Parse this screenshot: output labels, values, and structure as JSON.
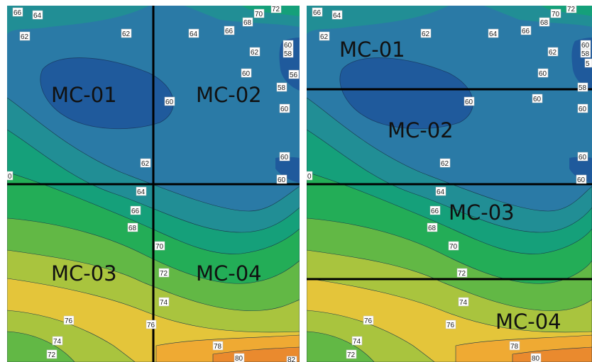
{
  "colors": {
    "deep_blue": "#1f5a9c",
    "blue": "#2a7aa6",
    "teal": "#218e95",
    "teal_green": "#15a07a",
    "green": "#23ad57",
    "light_green": "#62b845",
    "yellow_green": "#a9c43e",
    "yellow": "#e4c53a",
    "orange_yellow": "#efaa33",
    "orange": "#ea8a2e",
    "zone_line": "#000000"
  },
  "panels": [
    {
      "name": "left-map",
      "zones": [
        "MC-01",
        "MC-02",
        "MC-03",
        "MC-04"
      ],
      "contour_labels": [
        "66",
        "64",
        "62",
        "62",
        "64",
        "66",
        "68",
        "70",
        "72",
        "62",
        "60",
        "58",
        "60",
        "56",
        "58",
        "60",
        "60",
        "62",
        "60",
        "60",
        "0",
        "64",
        "66",
        "68",
        "70",
        "72",
        "74",
        "76",
        "76",
        "74",
        "72",
        "78",
        "80",
        "82"
      ]
    },
    {
      "name": "right-map",
      "zones": [
        "MC-01",
        "MC-02",
        "MC-03",
        "MC-04"
      ],
      "contour_labels": [
        "66",
        "64",
        "62",
        "62",
        "64",
        "66",
        "68",
        "70",
        "72",
        "62",
        "60",
        "58",
        "60",
        "60",
        "58",
        "60",
        "60",
        "62",
        "60",
        "60",
        "0",
        "64",
        "66",
        "68",
        "70",
        "72",
        "74",
        "76",
        "76",
        "74",
        "72",
        "78",
        "80",
        "5"
      ]
    }
  ]
}
